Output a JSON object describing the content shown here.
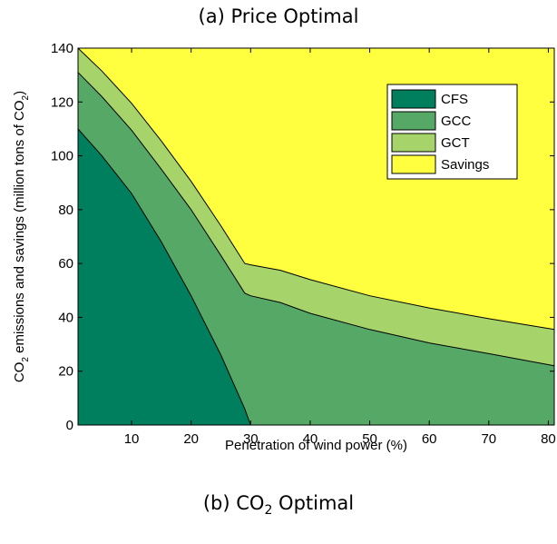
{
  "titles": {
    "top": "(a)  Price Optimal",
    "bottom_prefix": "(b)  CO",
    "bottom_sub": "2",
    "bottom_suffix": " Optimal"
  },
  "chart_data": {
    "type": "area",
    "title": "(a)  Price Optimal",
    "xlabel": "Penetration of wind power (%)",
    "ylabel": "CO2 emissions and savings (million tons of CO2)",
    "ylabel_parts": {
      "p1": "CO",
      "s1": "2",
      "p2": " emissions and savings (million tons of CO",
      "s2": "2",
      "p3": ")"
    },
    "xlim": [
      1,
      81
    ],
    "ylim": [
      0,
      140
    ],
    "xticks": [
      10,
      20,
      30,
      40,
      50,
      60,
      70,
      80
    ],
    "yticks": [
      0,
      20,
      40,
      60,
      80,
      100,
      120,
      140
    ],
    "grid": false,
    "legend": {
      "position": "top-right",
      "entries": [
        "CFS",
        "GCC",
        "GCT",
        "Savings"
      ]
    },
    "stack_total": 140,
    "x": [
      1,
      5,
      10,
      15,
      20,
      25,
      29,
      30,
      35,
      40,
      50,
      60,
      70,
      81
    ],
    "series": [
      {
        "name": "CFS",
        "color": "#007f5f",
        "values": [
          110,
          100,
          86,
          68,
          48,
          26,
          6,
          0,
          0,
          0,
          0,
          0,
          0,
          0
        ]
      },
      {
        "name": "GCC",
        "color": "#55a866",
        "values": [
          21,
          22,
          23.5,
          27,
          32,
          37,
          43,
          48,
          45.5,
          41.5,
          35.5,
          30.5,
          26.5,
          22
        ]
      },
      {
        "name": "GCT",
        "color": "#a7d46a",
        "values": [
          9,
          9.5,
          10,
          10.5,
          10.5,
          11,
          11,
          11.5,
          12,
          12.5,
          12.5,
          13,
          13,
          13.5
        ]
      },
      {
        "name": "Savings",
        "color": "#ffff40",
        "values": [
          0,
          8.5,
          20.5,
          34.5,
          49.5,
          66,
          80,
          80.5,
          82.5,
          86,
          92,
          96.5,
          100.5,
          104.5
        ]
      }
    ]
  }
}
